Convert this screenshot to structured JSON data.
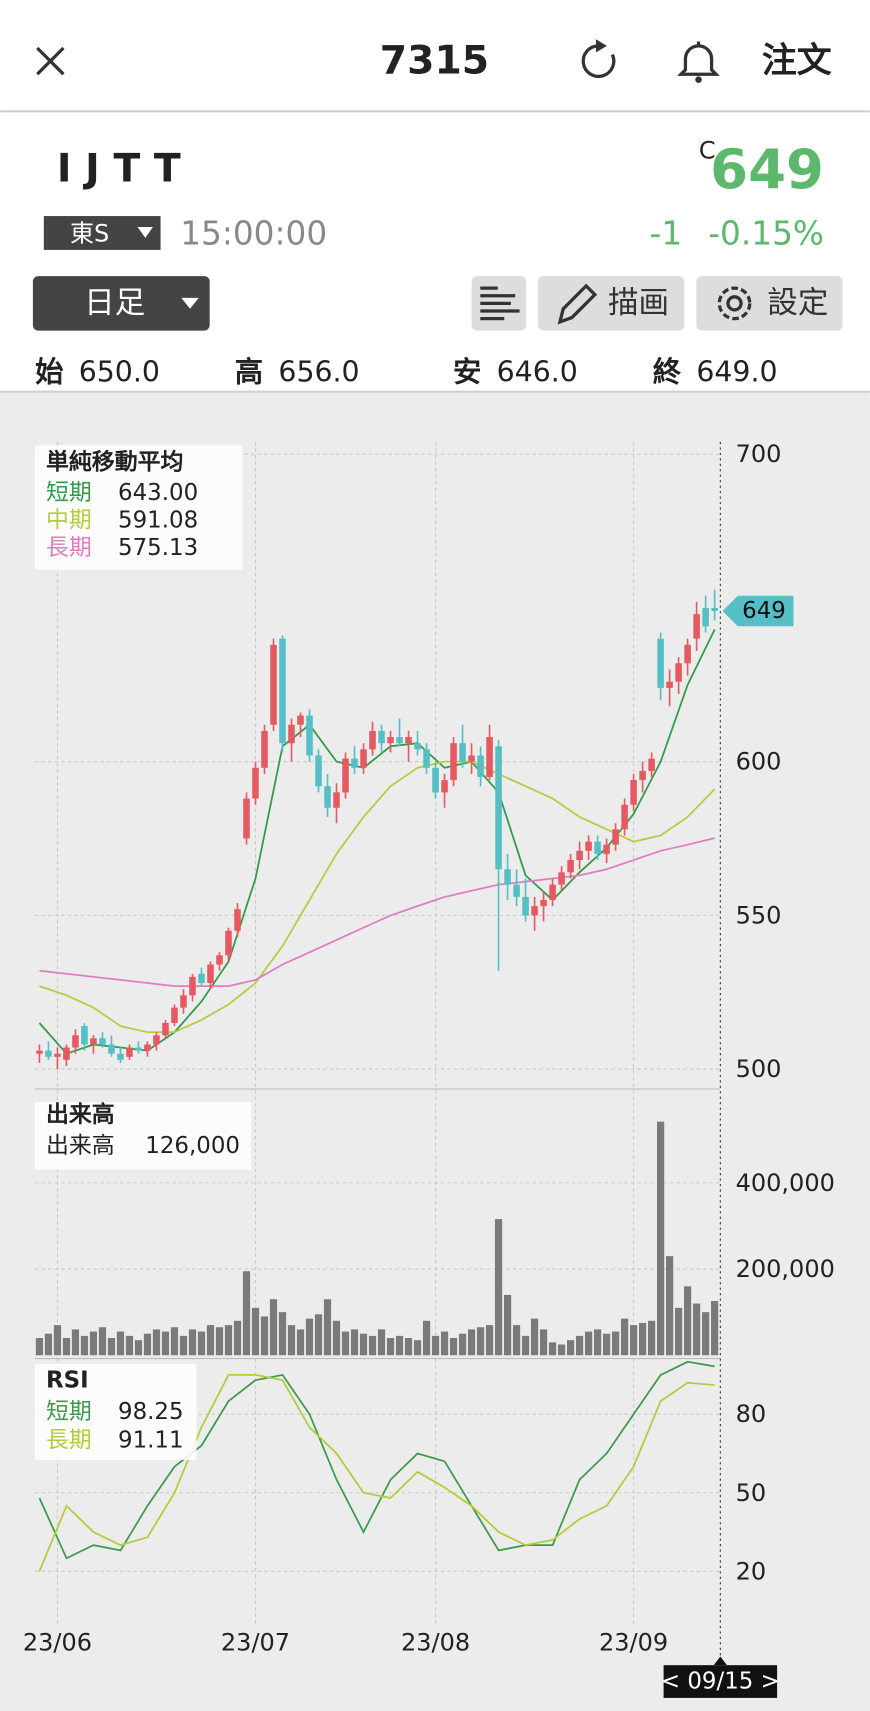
{
  "header": {
    "title": "7315",
    "order": "注文"
  },
  "quote": {
    "name": "I J T T",
    "flag": "C",
    "price": "649",
    "market": "東S",
    "time": "15:00:00",
    "change": "-1",
    "change_pct": "-0.15%"
  },
  "toolbar": {
    "period": "日足",
    "draw": "描画",
    "settings": "設定"
  },
  "ohlc": {
    "labels": [
      "始",
      "高",
      "安",
      "終"
    ],
    "values": [
      "650.0",
      "656.0",
      "646.0",
      "649.0"
    ]
  },
  "cursor_label": "< 09/15 >",
  "chart_data": [
    {
      "type": "candlestick",
      "title": "単純移動平均",
      "up_color": "#e55a62",
      "down_color": "#56bfc6",
      "ylim": [
        496,
        704
      ],
      "yticks": [
        500,
        550,
        600,
        700
      ],
      "grid": true,
      "last_price": 649,
      "open": [
        505,
        506,
        504,
        503,
        507,
        514,
        508,
        510,
        508,
        505,
        504,
        507,
        506,
        508,
        511,
        515,
        520,
        524,
        531,
        528,
        534,
        537,
        545,
        575,
        588,
        598,
        612,
        640,
        606,
        612,
        615,
        602,
        592,
        585,
        590,
        601,
        598,
        604,
        610,
        606,
        608,
        606,
        606,
        604,
        598,
        590,
        594,
        606,
        600,
        602,
        595,
        605,
        565,
        560,
        556,
        550,
        553,
        555,
        560,
        564,
        568,
        571,
        574,
        570,
        573,
        578,
        586,
        594,
        597,
        640,
        624,
        626,
        632,
        640,
        650,
        650
      ],
      "high": [
        508,
        509,
        507,
        508,
        513,
        515,
        511,
        512,
        511,
        507,
        508,
        509,
        509,
        512,
        516,
        521,
        526,
        531,
        533,
        535,
        538,
        546,
        554,
        590,
        600,
        612,
        640,
        641,
        614,
        616,
        617,
        604,
        596,
        593,
        603,
        605,
        606,
        613,
        612,
        610,
        614,
        610,
        610,
        606,
        600,
        596,
        608,
        612,
        606,
        605,
        612,
        607,
        570,
        565,
        562,
        556,
        558,
        562,
        566,
        570,
        574,
        576,
        576,
        575,
        580,
        588,
        596,
        600,
        603,
        642,
        630,
        634,
        640,
        652,
        654,
        656
      ],
      "low": [
        502,
        503,
        500,
        501,
        505,
        506,
        505,
        507,
        504,
        502,
        503,
        505,
        504,
        506,
        510,
        514,
        518,
        522,
        527,
        526,
        532,
        535,
        543,
        573,
        586,
        596,
        610,
        603,
        600,
        608,
        600,
        590,
        582,
        580,
        588,
        596,
        596,
        602,
        603,
        603,
        605,
        600,
        602,
        596,
        588,
        585,
        592,
        598,
        596,
        592,
        594,
        532,
        555,
        553,
        548,
        545,
        548,
        553,
        558,
        562,
        565,
        568,
        568,
        567,
        571,
        576,
        584,
        590,
        595,
        620,
        618,
        622,
        628,
        636,
        642,
        646
      ],
      "close": [
        506,
        504,
        505,
        507,
        511,
        508,
        510,
        508,
        505,
        503,
        507,
        506,
        508,
        511,
        515,
        520,
        524,
        530,
        528,
        534,
        537,
        545,
        552,
        588,
        598,
        610,
        638,
        606,
        612,
        615,
        602,
        592,
        585,
        590,
        601,
        598,
        604,
        610,
        606,
        608,
        606,
        608,
        604,
        598,
        590,
        594,
        606,
        600,
        602,
        595,
        608,
        565,
        560,
        556,
        550,
        553,
        555,
        560,
        564,
        568,
        571,
        574,
        570,
        573,
        578,
        586,
        594,
        597,
        601,
        624,
        626,
        632,
        638,
        648,
        644,
        649
      ],
      "series": [
        {
          "name": "短期",
          "color": "#2e9b48",
          "legend_value": "643.00",
          "x": [
            0,
            3,
            6,
            9,
            12,
            15,
            18,
            21,
            24,
            27,
            30,
            33,
            36,
            39,
            42,
            45,
            48,
            51,
            54,
            57,
            60,
            63,
            66,
            69,
            72,
            75
          ],
          "values": [
            515,
            505,
            508,
            507,
            506,
            512,
            522,
            535,
            562,
            605,
            612,
            600,
            598,
            605,
            606,
            598,
            600,
            590,
            563,
            555,
            564,
            572,
            583,
            600,
            625,
            643
          ]
        },
        {
          "name": "中期",
          "color": "#b5cc3e",
          "legend_value": "591.08",
          "x": [
            0,
            3,
            6,
            9,
            12,
            15,
            18,
            21,
            24,
            27,
            30,
            33,
            36,
            39,
            42,
            45,
            48,
            51,
            54,
            57,
            60,
            63,
            66,
            69,
            72,
            75
          ],
          "values": [
            527,
            524,
            520,
            514,
            512,
            512,
            516,
            521,
            528,
            540,
            555,
            570,
            582,
            592,
            598,
            600,
            600,
            596,
            592,
            588,
            582,
            578,
            574,
            576,
            582,
            591.08
          ]
        },
        {
          "name": "長期",
          "color": "#e07cc0",
          "legend_value": "575.13",
          "x": [
            0,
            3,
            6,
            9,
            12,
            15,
            18,
            21,
            24,
            27,
            30,
            33,
            36,
            39,
            42,
            45,
            48,
            51,
            54,
            57,
            60,
            63,
            66,
            69,
            72,
            75
          ],
          "values": [
            532,
            531,
            530,
            529,
            528,
            527,
            527,
            527,
            529,
            534,
            538,
            542,
            546,
            550,
            553,
            556,
            558,
            560,
            561,
            562,
            563,
            565,
            568,
            571,
            573,
            575.13
          ]
        }
      ]
    },
    {
      "type": "bar",
      "title": "出来高",
      "legend_label": "出来高",
      "legend_value": "126,000",
      "color": "#7a7a7a",
      "ylim": [
        0,
        600000
      ],
      "yticks": [
        {
          "value": 200000,
          "label": "200,000"
        },
        {
          "value": 400000,
          "label": "400,000"
        }
      ],
      "grid": true,
      "values": [
        40000,
        50000,
        70000,
        40000,
        60000,
        45000,
        55000,
        65000,
        40000,
        55000,
        45000,
        35000,
        50000,
        60000,
        55000,
        65000,
        45000,
        60000,
        55000,
        70000,
        65000,
        70000,
        80000,
        195000,
        110000,
        90000,
        130000,
        100000,
        70000,
        60000,
        85000,
        95000,
        130000,
        80000,
        55000,
        60000,
        50000,
        45000,
        60000,
        40000,
        45000,
        40000,
        35000,
        80000,
        45000,
        55000,
        40000,
        50000,
        60000,
        65000,
        70000,
        316000,
        140000,
        70000,
        45000,
        85000,
        60000,
        30000,
        25000,
        35000,
        45000,
        55000,
        60000,
        50000,
        55000,
        85000,
        70000,
        75000,
        80000,
        542000,
        230000,
        110000,
        160000,
        120000,
        100000,
        126000
      ]
    },
    {
      "type": "line",
      "title": "RSI",
      "ylim": [
        0,
        100
      ],
      "yticks": [
        20,
        50,
        80
      ],
      "grid": true,
      "categories": [
        null,
        null,
        "23/06",
        null,
        null,
        null,
        null,
        null,
        null,
        null,
        null,
        null,
        null,
        null,
        null,
        null,
        null,
        null,
        null,
        null,
        null,
        null,
        null,
        null,
        "23/07",
        null,
        null,
        null,
        null,
        null,
        null,
        null,
        null,
        null,
        null,
        null,
        null,
        null,
        null,
        null,
        null,
        null,
        null,
        null,
        "23/08",
        null,
        null,
        null,
        null,
        null,
        null,
        null,
        null,
        null,
        null,
        null,
        null,
        null,
        null,
        null,
        null,
        null,
        null,
        null,
        null,
        null,
        "23/09",
        null,
        null,
        null,
        null,
        null,
        null,
        null,
        null,
        null
      ],
      "series": [
        {
          "name": "短期",
          "color": "#3d9a4a",
          "legend_value": "98.25",
          "x": [
            0,
            3,
            6,
            9,
            12,
            15,
            18,
            21,
            24,
            27,
            30,
            33,
            36,
            39,
            42,
            45,
            48,
            51,
            54,
            57,
            60,
            63,
            66,
            69,
            72,
            75
          ],
          "values": [
            48,
            25,
            30,
            28,
            45,
            60,
            68,
            85,
            93,
            95,
            80,
            55,
            35,
            55,
            65,
            62,
            45,
            28,
            30,
            30,
            55,
            65,
            80,
            95,
            100,
            98.25
          ]
        },
        {
          "name": "長期",
          "color": "#b2cc3a",
          "legend_value": "91.11",
          "x": [
            0,
            3,
            6,
            9,
            12,
            15,
            18,
            21,
            24,
            27,
            30,
            33,
            36,
            39,
            42,
            45,
            48,
            51,
            54,
            57,
            60,
            63,
            66,
            69,
            72,
            75
          ],
          "values": [
            20,
            45,
            35,
            30,
            33,
            50,
            75,
            95,
            95,
            93,
            75,
            65,
            50,
            48,
            58,
            52,
            45,
            35,
            30,
            32,
            40,
            45,
            60,
            85,
            92,
            91.11
          ]
        }
      ]
    }
  ]
}
